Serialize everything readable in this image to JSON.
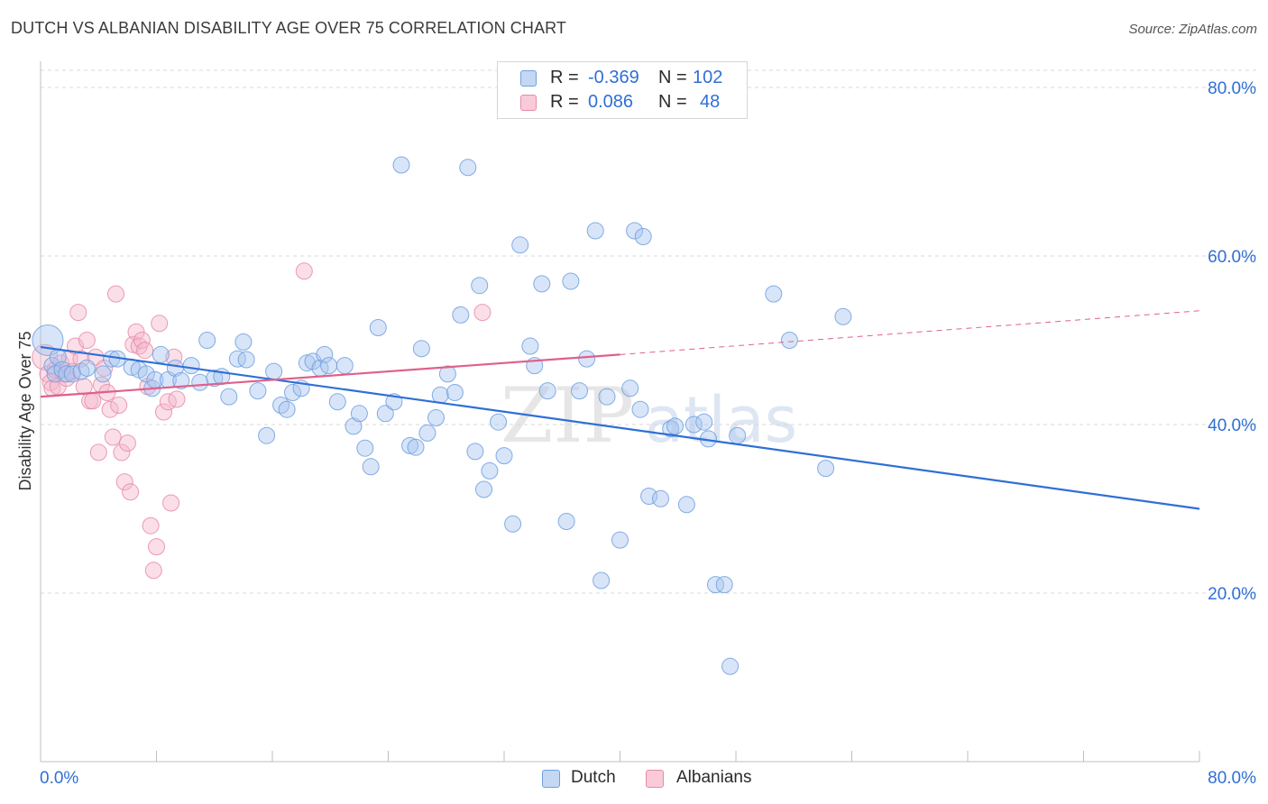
{
  "title": "DUTCH VS ALBANIAN DISABILITY AGE OVER 75 CORRELATION CHART",
  "source": "Source: ZipAtlas.com",
  "watermark": "ZIPatlas",
  "legend": {
    "r_label": "R =",
    "n_label": "N =",
    "rows": [
      {
        "series": "Dutch",
        "r": "-0.369",
        "n": "102"
      },
      {
        "series": "Albanians",
        "r": "0.086",
        "n": "48"
      }
    ]
  },
  "colors": {
    "dutch_fill": "#a9c6ef",
    "dutch_stroke": "#6f9fdf",
    "dutch_line": "#2f6fd6",
    "albanian_fill": "#f5b8cb",
    "albanian_stroke": "#e88aa8",
    "albanian_line": "#e0608a",
    "tick_text": "#2f6fd6",
    "grid": "#d8d8d8"
  },
  "chart_data": {
    "type": "scatter",
    "title": "DUTCH VS ALBANIAN DISABILITY AGE OVER 75 CORRELATION CHART",
    "ylabel": "Disability Age Over 75",
    "xlabel": "",
    "xlim": [
      0,
      80
    ],
    "ylim": [
      0,
      85
    ],
    "x_tick_labels": [
      "0.0%",
      "80.0%"
    ],
    "y_ticks": [
      20,
      40,
      60,
      80
    ],
    "y_tick_labels": [
      "20.0%",
      "40.0%",
      "60.0%",
      "80.0%"
    ],
    "grid": "horizontal dashed",
    "legend_position": "top-center",
    "series": [
      {
        "name": "Dutch",
        "trend": {
          "x": [
            0,
            80
          ],
          "y": [
            49.2,
            30.0
          ]
        },
        "points": [
          [
            0.5,
            50.0
          ],
          [
            0.8,
            47.0
          ],
          [
            1.0,
            46.0
          ],
          [
            1.2,
            48.0
          ],
          [
            1.5,
            46.5
          ],
          [
            1.8,
            46.0
          ],
          [
            2.2,
            46.0
          ],
          [
            2.8,
            46.3
          ],
          [
            3.2,
            46.7
          ],
          [
            4.3,
            46.0
          ],
          [
            4.9,
            47.8
          ],
          [
            5.3,
            47.8
          ],
          [
            6.3,
            46.8
          ],
          [
            6.8,
            46.5
          ],
          [
            7.3,
            46.0
          ],
          [
            7.7,
            44.3
          ],
          [
            7.9,
            45.3
          ],
          [
            8.3,
            48.3
          ],
          [
            8.8,
            45.3
          ],
          [
            9.3,
            46.7
          ],
          [
            9.7,
            45.2
          ],
          [
            10.4,
            47.0
          ],
          [
            11.0,
            45.0
          ],
          [
            11.5,
            50.0
          ],
          [
            12.0,
            45.5
          ],
          [
            12.5,
            45.7
          ],
          [
            13.0,
            43.3
          ],
          [
            13.6,
            47.8
          ],
          [
            14.0,
            49.8
          ],
          [
            14.2,
            47.7
          ],
          [
            15.0,
            44.0
          ],
          [
            15.6,
            38.7
          ],
          [
            16.1,
            46.3
          ],
          [
            16.6,
            42.3
          ],
          [
            17.0,
            41.8
          ],
          [
            17.4,
            43.8
          ],
          [
            18.0,
            44.3
          ],
          [
            18.4,
            47.3
          ],
          [
            18.8,
            47.5
          ],
          [
            19.3,
            46.7
          ],
          [
            19.6,
            48.3
          ],
          [
            19.9,
            47.0
          ],
          [
            20.5,
            42.7
          ],
          [
            21.0,
            47.0
          ],
          [
            21.6,
            39.8
          ],
          [
            22.0,
            41.3
          ],
          [
            22.4,
            37.2
          ],
          [
            22.8,
            35.0
          ],
          [
            23.3,
            51.5
          ],
          [
            23.8,
            41.3
          ],
          [
            24.4,
            42.7
          ],
          [
            24.9,
            70.8
          ],
          [
            25.5,
            37.5
          ],
          [
            25.9,
            37.3
          ],
          [
            26.3,
            49.0
          ],
          [
            26.7,
            39.0
          ],
          [
            27.3,
            40.8
          ],
          [
            27.6,
            43.5
          ],
          [
            28.1,
            46.0
          ],
          [
            28.6,
            43.8
          ],
          [
            29.0,
            53.0
          ],
          [
            29.5,
            70.5
          ],
          [
            30.0,
            36.8
          ],
          [
            30.3,
            56.5
          ],
          [
            30.6,
            32.3
          ],
          [
            31.0,
            34.5
          ],
          [
            31.6,
            40.3
          ],
          [
            32.0,
            36.3
          ],
          [
            32.6,
            28.2
          ],
          [
            33.1,
            61.3
          ],
          [
            33.8,
            49.3
          ],
          [
            34.1,
            47.0
          ],
          [
            34.6,
            56.7
          ],
          [
            35.0,
            44.0
          ],
          [
            36.3,
            28.5
          ],
          [
            36.6,
            57.0
          ],
          [
            37.2,
            44.0
          ],
          [
            37.7,
            47.8
          ],
          [
            38.3,
            63.0
          ],
          [
            38.7,
            21.5
          ],
          [
            39.1,
            43.3
          ],
          [
            40.0,
            26.3
          ],
          [
            40.7,
            44.3
          ],
          [
            41.0,
            63.0
          ],
          [
            41.4,
            41.8
          ],
          [
            41.6,
            62.3
          ],
          [
            42.0,
            31.5
          ],
          [
            42.8,
            31.2
          ],
          [
            43.5,
            39.5
          ],
          [
            43.8,
            39.8
          ],
          [
            44.6,
            30.5
          ],
          [
            45.1,
            40.0
          ],
          [
            45.8,
            40.3
          ],
          [
            46.1,
            38.3
          ],
          [
            46.6,
            21.0
          ],
          [
            47.2,
            21.0
          ],
          [
            47.6,
            11.3
          ],
          [
            48.1,
            38.7
          ],
          [
            50.6,
            55.5
          ],
          [
            51.7,
            50.0
          ],
          [
            54.2,
            34.8
          ],
          [
            55.4,
            52.8
          ]
        ]
      },
      {
        "name": "Albanians",
        "trend": {
          "x": [
            0,
            40
          ],
          "y": [
            43.3,
            48.3
          ]
        },
        "trend_extension": {
          "x": [
            40,
            80
          ],
          "y": [
            48.3,
            53.5
          ]
        },
        "points": [
          [
            0.3,
            48.0
          ],
          [
            0.5,
            46.0
          ],
          [
            0.7,
            45.0
          ],
          [
            0.8,
            44.3
          ],
          [
            1.0,
            46.5
          ],
          [
            1.2,
            44.5
          ],
          [
            1.4,
            47.3
          ],
          [
            1.6,
            46.0
          ],
          [
            1.8,
            45.5
          ],
          [
            2.0,
            47.8
          ],
          [
            2.2,
            46.3
          ],
          [
            2.4,
            49.3
          ],
          [
            2.6,
            53.3
          ],
          [
            2.8,
            47.8
          ],
          [
            3.0,
            44.5
          ],
          [
            3.2,
            50.0
          ],
          [
            3.4,
            42.8
          ],
          [
            3.6,
            42.8
          ],
          [
            3.8,
            48.0
          ],
          [
            4.0,
            36.7
          ],
          [
            4.2,
            44.7
          ],
          [
            4.4,
            46.7
          ],
          [
            4.6,
            43.8
          ],
          [
            4.8,
            41.8
          ],
          [
            5.0,
            38.5
          ],
          [
            5.2,
            55.5
          ],
          [
            5.4,
            42.3
          ],
          [
            5.6,
            36.7
          ],
          [
            5.8,
            33.2
          ],
          [
            6.0,
            37.8
          ],
          [
            6.2,
            32.0
          ],
          [
            6.4,
            49.5
          ],
          [
            6.6,
            51.0
          ],
          [
            6.8,
            49.3
          ],
          [
            7.0,
            50.0
          ],
          [
            7.2,
            48.8
          ],
          [
            7.4,
            44.5
          ],
          [
            7.6,
            28.0
          ],
          [
            7.8,
            22.7
          ],
          [
            8.0,
            25.5
          ],
          [
            8.2,
            52.0
          ],
          [
            8.5,
            41.5
          ],
          [
            8.8,
            42.7
          ],
          [
            9.0,
            30.7
          ],
          [
            9.2,
            48.0
          ],
          [
            9.4,
            43.0
          ],
          [
            18.2,
            58.2
          ],
          [
            30.5,
            53.3
          ]
        ]
      }
    ]
  }
}
